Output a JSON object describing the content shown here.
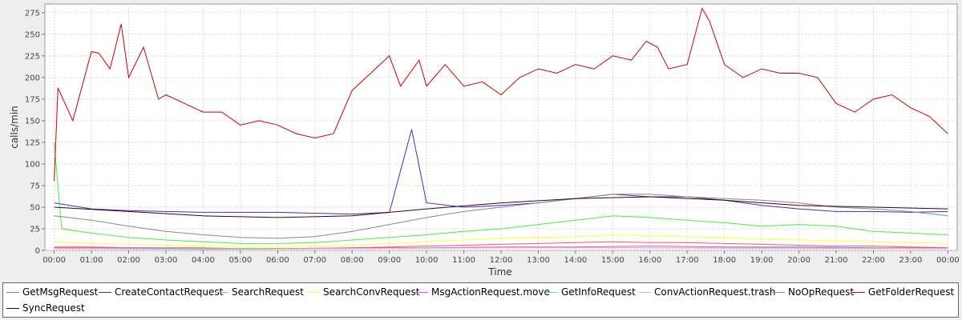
{
  "chart_data": {
    "type": "line",
    "title": "",
    "xlabel": "Time",
    "ylabel": "calls/min",
    "ylim": [
      0,
      285
    ],
    "yticks": [
      0,
      25,
      50,
      75,
      100,
      125,
      150,
      175,
      200,
      225,
      250,
      275
    ],
    "xticks": [
      "00:00",
      "01:00",
      "02:00",
      "03:00",
      "04:00",
      "05:00",
      "06:00",
      "07:00",
      "08:00",
      "09:00",
      "10:00",
      "11:00",
      "12:00",
      "13:00",
      "14:00",
      "15:00",
      "16:00",
      "17:00",
      "18:00",
      "19:00",
      "20:00",
      "21:00",
      "22:00",
      "23:00",
      "00:00"
    ],
    "xlim_hours": [
      -0.25,
      24.25
    ],
    "grid": true,
    "legend_position": "bottom",
    "series": [
      {
        "name": "GetMsgRequest",
        "color": "#ff5555",
        "points": [
          [
            0,
            4
          ],
          [
            1,
            4
          ],
          [
            2,
            3
          ],
          [
            3,
            3
          ],
          [
            4,
            3
          ],
          [
            5,
            2
          ],
          [
            6,
            2
          ],
          [
            7,
            2
          ],
          [
            8,
            3
          ],
          [
            9,
            4
          ],
          [
            10,
            5
          ],
          [
            11,
            6
          ],
          [
            12,
            7
          ],
          [
            13,
            8
          ],
          [
            14,
            9
          ],
          [
            15,
            10
          ],
          [
            16,
            9
          ],
          [
            17,
            9
          ],
          [
            18,
            8
          ],
          [
            19,
            7
          ],
          [
            20,
            6
          ],
          [
            21,
            5
          ],
          [
            22,
            5
          ],
          [
            23,
            4
          ],
          [
            24,
            3
          ]
        ]
      },
      {
        "name": "CreateContactRequest",
        "color": "#3333cc",
        "points": [
          [
            0,
            55
          ],
          [
            1,
            48
          ],
          [
            2,
            46
          ],
          [
            3,
            45
          ],
          [
            4,
            44
          ],
          [
            5,
            44
          ],
          [
            6,
            44
          ],
          [
            7,
            43
          ],
          [
            8,
            42
          ],
          [
            9,
            44
          ],
          [
            9.6,
            140
          ],
          [
            10,
            55
          ],
          [
            11,
            50
          ],
          [
            12,
            52
          ],
          [
            13,
            55
          ],
          [
            14,
            60
          ],
          [
            15,
            65
          ],
          [
            16,
            62
          ],
          [
            17,
            62
          ],
          [
            18,
            58
          ],
          [
            19,
            52
          ],
          [
            20,
            48
          ],
          [
            21,
            45
          ],
          [
            22,
            45
          ],
          [
            23,
            44
          ],
          [
            24,
            45
          ]
        ]
      },
      {
        "name": "SearchRequest",
        "color": "#44ee44",
        "points": [
          [
            0,
            125
          ],
          [
            0.2,
            25
          ],
          [
            1,
            20
          ],
          [
            2,
            15
          ],
          [
            3,
            12
          ],
          [
            4,
            10
          ],
          [
            5,
            8
          ],
          [
            6,
            8
          ],
          [
            7,
            9
          ],
          [
            8,
            12
          ],
          [
            9,
            15
          ],
          [
            10,
            18
          ],
          [
            11,
            22
          ],
          [
            12,
            25
          ],
          [
            13,
            30
          ],
          [
            14,
            35
          ],
          [
            15,
            40
          ],
          [
            16,
            38
          ],
          [
            17,
            35
          ],
          [
            18,
            32
          ],
          [
            19,
            28
          ],
          [
            20,
            30
          ],
          [
            21,
            28
          ],
          [
            22,
            22
          ],
          [
            23,
            20
          ],
          [
            24,
            18
          ]
        ]
      },
      {
        "name": "SearchConvRequest",
        "color": "#ffff33",
        "points": [
          [
            0,
            10
          ],
          [
            1,
            8
          ],
          [
            2,
            7
          ],
          [
            3,
            6
          ],
          [
            4,
            5
          ],
          [
            5,
            4
          ],
          [
            6,
            4
          ],
          [
            7,
            5
          ],
          [
            8,
            6
          ],
          [
            9,
            8
          ],
          [
            10,
            10
          ],
          [
            11,
            12
          ],
          [
            12,
            14
          ],
          [
            13,
            15
          ],
          [
            14,
            16
          ],
          [
            15,
            18
          ],
          [
            16,
            17
          ],
          [
            17,
            16
          ],
          [
            18,
            15
          ],
          [
            19,
            13
          ],
          [
            20,
            12
          ],
          [
            21,
            11
          ],
          [
            22,
            10
          ],
          [
            23,
            9
          ],
          [
            24,
            8
          ]
        ]
      },
      {
        "name": "MsgActionRequest.move",
        "color": "#ee44ee",
        "points": [
          [
            0,
            3
          ],
          [
            2,
            3
          ],
          [
            4,
            2
          ],
          [
            6,
            2
          ],
          [
            8,
            3
          ],
          [
            10,
            3
          ],
          [
            12,
            4
          ],
          [
            14,
            4
          ],
          [
            16,
            5
          ],
          [
            18,
            4
          ],
          [
            20,
            4
          ],
          [
            22,
            3
          ],
          [
            24,
            3
          ]
        ]
      },
      {
        "name": "GetInfoRequest",
        "color": "#44dddd",
        "points": [
          [
            0,
            2
          ],
          [
            4,
            2
          ],
          [
            8,
            2
          ],
          [
            12,
            3
          ],
          [
            16,
            3
          ],
          [
            20,
            3
          ],
          [
            24,
            2
          ]
        ]
      },
      {
        "name": "ConvActionRequest.trash",
        "color": "#ffaaaa",
        "points": [
          [
            0,
            2
          ],
          [
            4,
            1
          ],
          [
            8,
            2
          ],
          [
            12,
            3
          ],
          [
            16,
            3
          ],
          [
            20,
            2
          ],
          [
            24,
            2
          ]
        ]
      },
      {
        "name": "NoOpRequest",
        "color": "#888888",
        "points": [
          [
            0,
            40
          ],
          [
            1,
            35
          ],
          [
            2,
            28
          ],
          [
            3,
            22
          ],
          [
            4,
            18
          ],
          [
            5,
            15
          ],
          [
            6,
            14
          ],
          [
            7,
            16
          ],
          [
            8,
            22
          ],
          [
            9,
            30
          ],
          [
            10,
            38
          ],
          [
            11,
            45
          ],
          [
            12,
            50
          ],
          [
            13,
            55
          ],
          [
            14,
            60
          ],
          [
            15,
            65
          ],
          [
            16,
            65
          ],
          [
            17,
            62
          ],
          [
            18,
            60
          ],
          [
            19,
            58
          ],
          [
            20,
            55
          ],
          [
            21,
            50
          ],
          [
            22,
            48
          ],
          [
            23,
            45
          ],
          [
            24,
            40
          ]
        ]
      },
      {
        "name": "GetFolderRequest",
        "color": "#cc0000",
        "points": [
          [
            0,
            80
          ],
          [
            0.1,
            188
          ],
          [
            0.5,
            150
          ],
          [
            1,
            230
          ],
          [
            1.2,
            228
          ],
          [
            1.5,
            210
          ],
          [
            1.8,
            262
          ],
          [
            2,
            200
          ],
          [
            2.4,
            235
          ],
          [
            2.8,
            175
          ],
          [
            3,
            180
          ],
          [
            3.5,
            170
          ],
          [
            4,
            160
          ],
          [
            4.5,
            160
          ],
          [
            5,
            145
          ],
          [
            5.5,
            150
          ],
          [
            6,
            145
          ],
          [
            6.5,
            135
          ],
          [
            7,
            130
          ],
          [
            7.5,
            135
          ],
          [
            8,
            185
          ],
          [
            8.5,
            205
          ],
          [
            9,
            225
          ],
          [
            9.3,
            190
          ],
          [
            9.8,
            220
          ],
          [
            10,
            190
          ],
          [
            10.5,
            215
          ],
          [
            11,
            190
          ],
          [
            11.5,
            195
          ],
          [
            12,
            180
          ],
          [
            12.5,
            200
          ],
          [
            13,
            210
          ],
          [
            13.5,
            205
          ],
          [
            14,
            215
          ],
          [
            14.5,
            210
          ],
          [
            15,
            225
          ],
          [
            15.5,
            220
          ],
          [
            15.9,
            242
          ],
          [
            16.2,
            235
          ],
          [
            16.5,
            210
          ],
          [
            17,
            215
          ],
          [
            17.4,
            280
          ],
          [
            17.6,
            265
          ],
          [
            18,
            215
          ],
          [
            18.5,
            200
          ],
          [
            19,
            210
          ],
          [
            19.5,
            205
          ],
          [
            20,
            205
          ],
          [
            20.5,
            200
          ],
          [
            21,
            170
          ],
          [
            21.5,
            160
          ],
          [
            22,
            175
          ],
          [
            22.5,
            180
          ],
          [
            23,
            165
          ],
          [
            23.5,
            155
          ],
          [
            24,
            135
          ]
        ]
      },
      {
        "name": "SyncRequest",
        "color": "#440000",
        "points": [
          [
            0,
            50
          ],
          [
            2,
            45
          ],
          [
            4,
            40
          ],
          [
            6,
            38
          ],
          [
            8,
            40
          ],
          [
            10,
            48
          ],
          [
            12,
            55
          ],
          [
            14,
            60
          ],
          [
            16,
            62
          ],
          [
            18,
            58
          ],
          [
            20,
            52
          ],
          [
            22,
            50
          ],
          [
            24,
            48
          ]
        ]
      }
    ]
  }
}
